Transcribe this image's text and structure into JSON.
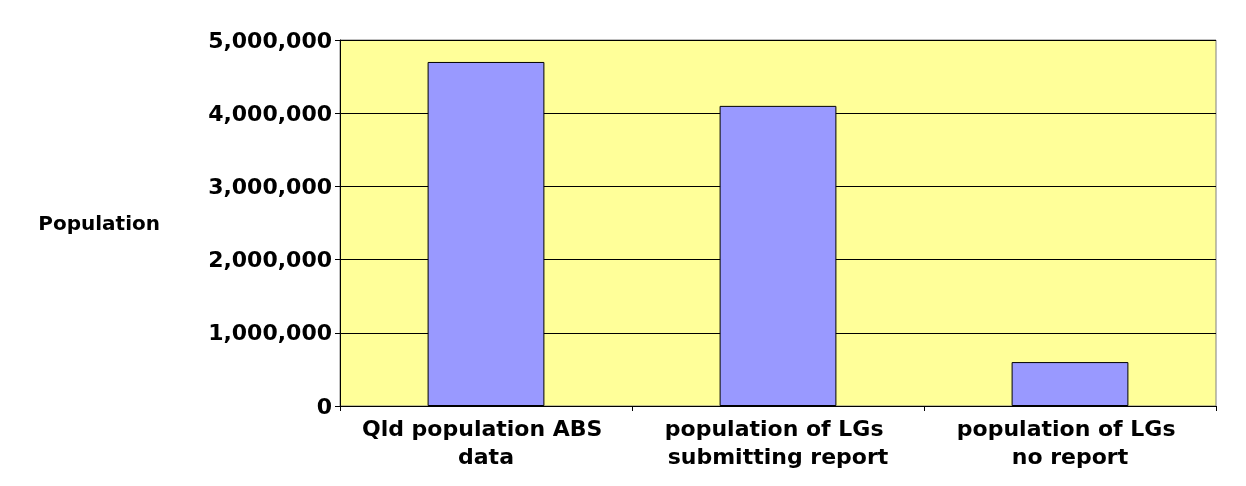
{
  "chart_data": {
    "type": "bar",
    "ylabel": "Population",
    "categories": [
      "Qld population ABS data",
      "population of LGs submitting report",
      "population of LGs no report"
    ],
    "values": [
      4700000,
      4100000,
      600000
    ],
    "color": "#9999ff",
    "ylim": [
      0,
      5000000
    ],
    "yticks": [
      0,
      {
        "value": 1000000,
        "label": "1,000,000"
      },
      {
        "value": 2000000,
        "label": "2,000,000"
      },
      {
        "value": 3000000,
        "label": "3,000,000"
      },
      {
        "value": 4000000,
        "label": "4,000,000"
      },
      {
        "value": 5000000,
        "label": "5,000,000"
      }
    ],
    "grid": "y"
  }
}
